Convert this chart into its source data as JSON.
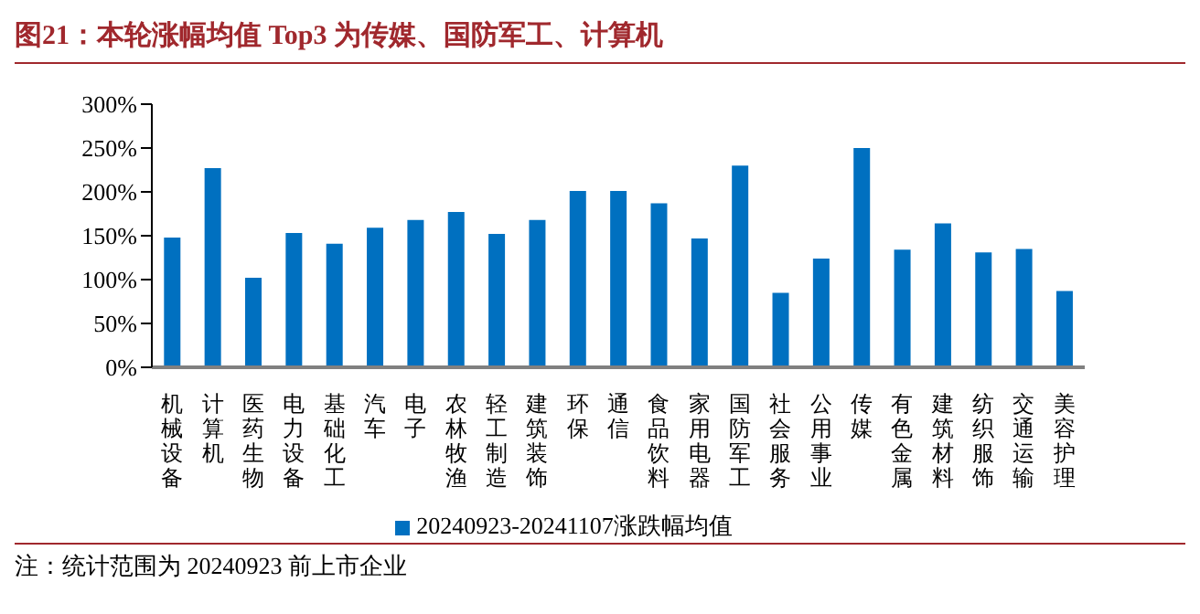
{
  "chart_data": {
    "type": "bar",
    "title": "图21：本轮涨幅均值 Top3 为传媒、国防军工、计算机",
    "categories": [
      "机械设备",
      "计算机",
      "医药生物",
      "电力设备",
      "基础化工",
      "汽车",
      "电子",
      "农林牧渔",
      "轻工制造",
      "建筑装饰",
      "环保",
      "通信",
      "食品饮料",
      "家用电器",
      "国防军工",
      "社会服务",
      "公用事业",
      "传媒",
      "有色金属",
      "建筑材料",
      "纺织服饰",
      "交通运输",
      "美容护理"
    ],
    "series": [
      {
        "name": "20240923-20241107涨跌幅均值",
        "color": "#0070c0",
        "values": [
          148,
          227,
          102,
          153,
          141,
          159,
          168,
          177,
          152,
          168,
          201,
          201,
          187,
          147,
          230,
          85,
          124,
          250,
          134,
          164,
          131,
          135,
          87
        ]
      }
    ],
    "ylim": [
      0,
      300
    ],
    "yticks": [
      {
        "value": 0,
        "label": "0%"
      },
      {
        "value": 50,
        "label": "50%"
      },
      {
        "value": 100,
        "label": "100%"
      },
      {
        "value": 150,
        "label": "150%"
      },
      {
        "value": 200,
        "label": "200%"
      },
      {
        "value": 250,
        "label": "250%"
      },
      {
        "value": 300,
        "label": "300%"
      }
    ],
    "grid": false,
    "legend": "bottom",
    "annotations": [
      "注：统计范围为 20240923 前上市企业"
    ]
  }
}
